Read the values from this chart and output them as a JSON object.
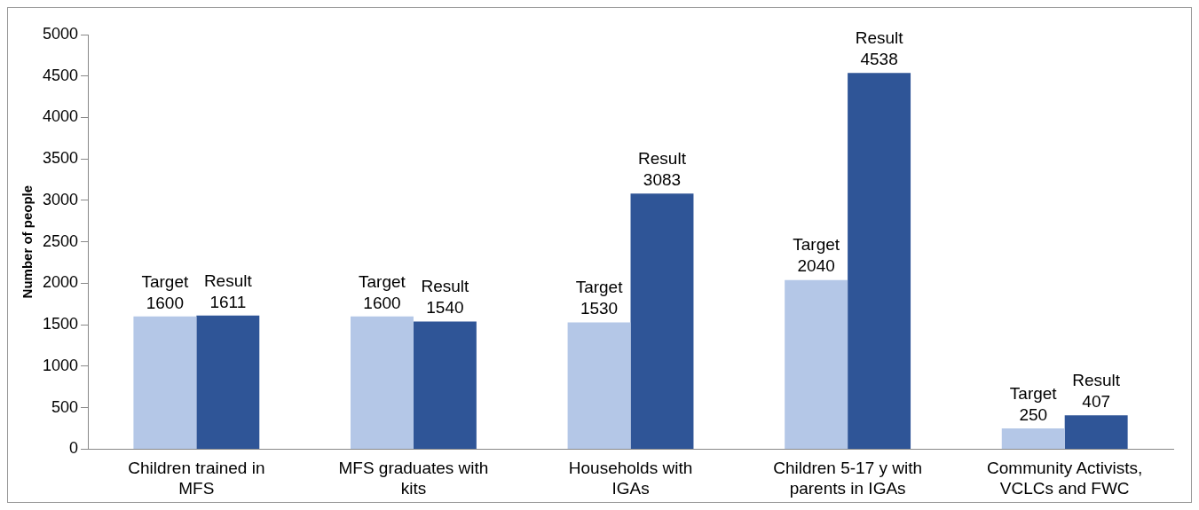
{
  "chart_data": {
    "type": "bar",
    "ylabel": "Number of people",
    "categories": [
      "Children trained in\nMFS",
      "MFS graduates with\nkits",
      "Households with\nIGAs",
      "Children 5-17 y with\nparents in IGAs",
      "Community Activists,\nVCLCs and FWC"
    ],
    "series": [
      {
        "name": "Target",
        "color": "#b4c7e7",
        "values": [
          1600,
          1600,
          1530,
          2040,
          250
        ]
      },
      {
        "name": "Result",
        "color": "#2f5597",
        "values": [
          1611,
          1540,
          3083,
          4538,
          407
        ]
      }
    ],
    "ylim": [
      0,
      5000
    ],
    "yticks": [
      0,
      500,
      1000,
      1500,
      2000,
      2500,
      3000,
      3500,
      4000,
      4500,
      5000
    ],
    "grid": false,
    "legend": false,
    "data_labels": true
  }
}
